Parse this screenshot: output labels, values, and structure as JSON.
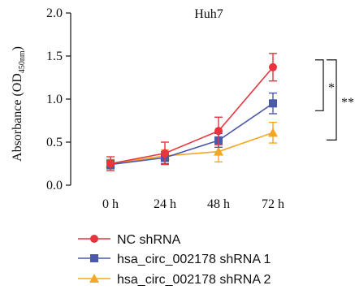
{
  "chart_data": {
    "type": "line",
    "title": "Huh7",
    "ylabel_main": "Absorbance (OD",
    "ylabel_sub": "450nm",
    "ylabel_close": ")",
    "categories": [
      "0 h",
      "24 h",
      "48 h",
      "72 h"
    ],
    "ylim": [
      0.0,
      2.0
    ],
    "yticks": [
      0.0,
      0.5,
      1.0,
      1.5,
      2.0
    ],
    "ytick_labels": [
      "0.0",
      "0.5",
      "1.0",
      "1.5",
      "2.0"
    ],
    "grid": false,
    "legend_position": "bottom",
    "series": [
      {
        "name": "NC shRNA",
        "marker": "circle",
        "color": "#e8343c",
        "values": [
          0.25,
          0.37,
          0.63,
          1.37
        ],
        "errors": [
          0.08,
          0.13,
          0.16,
          0.16
        ]
      },
      {
        "name": "hsa_circ_002178 shRNA 1",
        "marker": "square",
        "color": "#4a5aa8",
        "values": [
          0.24,
          0.32,
          0.52,
          0.95
        ],
        "errors": [
          0.05,
          0.07,
          0.08,
          0.12
        ]
      },
      {
        "name": "hsa_circ_002178 shRNA 2",
        "marker": "triangle",
        "color": "#f5a623",
        "values": [
          0.25,
          0.34,
          0.39,
          0.61
        ],
        "errors": [
          0.05,
          0.07,
          0.12,
          0.12
        ]
      }
    ],
    "annotations": [
      {
        "label": "*",
        "from": 0,
        "to": 1
      },
      {
        "label": "**",
        "from": 0,
        "to": 2
      }
    ]
  }
}
